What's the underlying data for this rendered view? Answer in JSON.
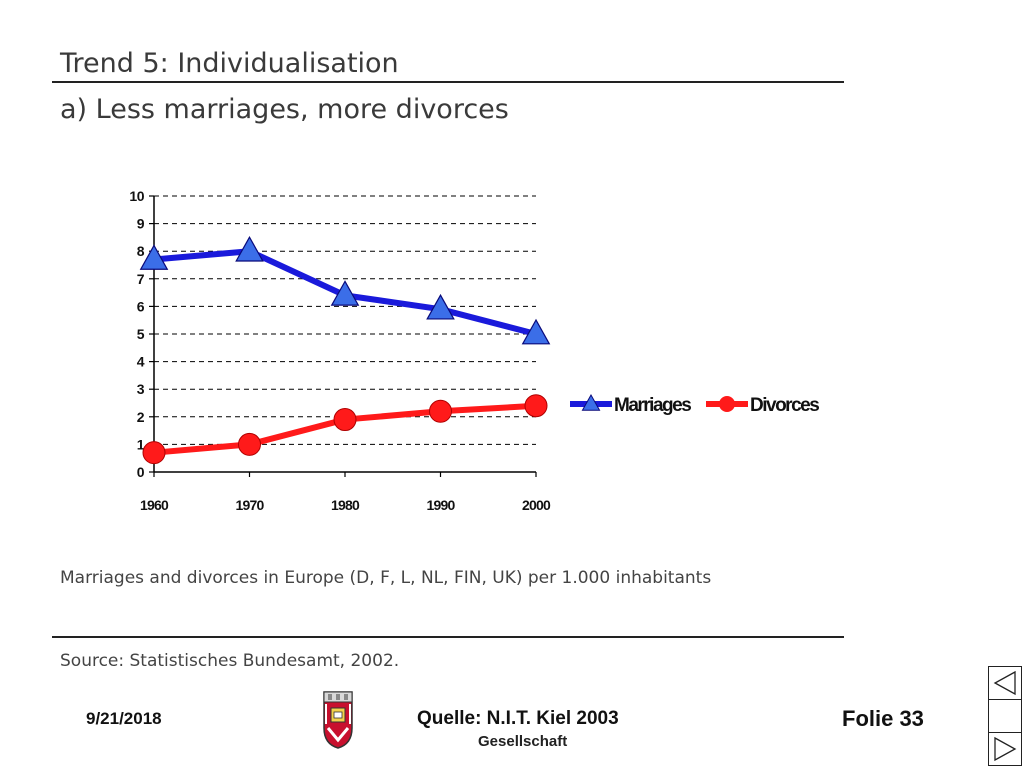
{
  "slide": {
    "title": "Trend 5: Individualisation",
    "subtitle": "a) Less marriages, more divorces",
    "caption": "Marriages and divorces in Europe (D, F, L, NL, FIN, UK) per 1.000 inhabitants",
    "source": "Source: Statistisches Bundesamt, 2002."
  },
  "footer": {
    "date": "9/21/2018",
    "quelle": "Quelle: N.I.T. Kiel 2003",
    "gesellschaft": "Gesellschaft",
    "folie": "Folie 33",
    "logo_icon": "coat-of-arms-icon",
    "nav_prev_icon": "triangle-left-icon",
    "nav_next_icon": "triangle-right-icon"
  },
  "chart_data": {
    "type": "line",
    "categories": [
      "1960",
      "1970",
      "1980",
      "1990",
      "2000"
    ],
    "series": [
      {
        "name": "Marriages",
        "values": [
          7.7,
          8.0,
          6.4,
          5.9,
          5.0
        ],
        "color": "#1a1adb",
        "marker": "triangle"
      },
      {
        "name": "Divorces",
        "values": [
          0.7,
          1.0,
          1.9,
          2.2,
          2.4
        ],
        "color": "#ff1a1a",
        "marker": "circle"
      }
    ],
    "ylim": [
      0,
      10
    ],
    "yticks": [
      "0",
      "1",
      "2",
      "3",
      "4",
      "5",
      "6",
      "7",
      "8",
      "9",
      "10"
    ],
    "grid": "dashed-horizontal",
    "legend": "right"
  }
}
